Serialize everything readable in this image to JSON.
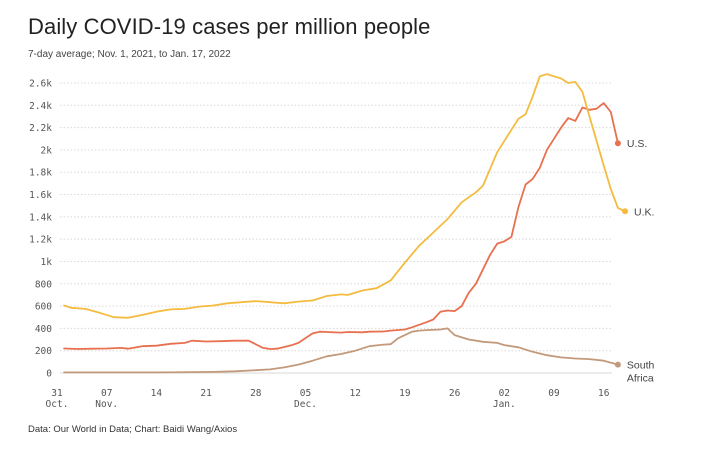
{
  "header": {
    "title": "Daily COVID-19 cases per million people",
    "subtitle": "7-day average; Nov. 1, 2021, to Jan. 17, 2022"
  },
  "footer": {
    "source": "Data: Our World in Data; Chart: Baidi Wang/Axios"
  },
  "colors": {
    "us": "#e8704f",
    "uk": "#f4bb3f",
    "south_africa": "#c29a7b",
    "grid": "#d8d8d8",
    "text": "#555555"
  },
  "chart_data": {
    "type": "line",
    "title": "Daily COVID-19 cases per million people",
    "subtitle": "7-day average; Nov. 1, 2021, to Jan. 17, 2022",
    "xlabel": "",
    "ylabel": "",
    "x_range": [
      "2021-10-31",
      "2022-01-18"
    ],
    "ylim": [
      0,
      2700
    ],
    "grid": true,
    "y_ticks": [
      0,
      200,
      400,
      600,
      800,
      1000,
      1200,
      1400,
      1600,
      1800,
      2000,
      2200,
      2400,
      2600
    ],
    "y_tick_labels": [
      "0",
      "200",
      "400",
      "600",
      "800",
      "1k",
      "1.2k",
      "1.4k",
      "1.6k",
      "1.8k",
      "2k",
      "2.2k",
      "2.4k",
      "2.6k"
    ],
    "x_ticks": [
      {
        "date": "2021-10-31",
        "day": "31",
        "month": "Oct."
      },
      {
        "date": "2021-11-07",
        "day": "07",
        "month": "Nov."
      },
      {
        "date": "2021-11-14",
        "day": "14",
        "month": ""
      },
      {
        "date": "2021-11-21",
        "day": "21",
        "month": ""
      },
      {
        "date": "2021-11-28",
        "day": "28",
        "month": ""
      },
      {
        "date": "2021-12-05",
        "day": "05",
        "month": "Dec."
      },
      {
        "date": "2021-12-12",
        "day": "12",
        "month": ""
      },
      {
        "date": "2021-12-19",
        "day": "19",
        "month": ""
      },
      {
        "date": "2021-12-26",
        "day": "26",
        "month": ""
      },
      {
        "date": "2022-01-02",
        "day": "02",
        "month": "Jan."
      },
      {
        "date": "2022-01-09",
        "day": "09",
        "month": ""
      },
      {
        "date": "2022-01-16",
        "day": "16",
        "month": ""
      }
    ],
    "series": [
      {
        "name": "U.S.",
        "label": "U.S.",
        "color": "#e8704f",
        "points": [
          [
            "2021-11-01",
            220
          ],
          [
            "2021-11-03",
            215
          ],
          [
            "2021-11-05",
            218
          ],
          [
            "2021-11-07",
            220
          ],
          [
            "2021-11-09",
            225
          ],
          [
            "2021-11-10",
            218
          ],
          [
            "2021-11-12",
            240
          ],
          [
            "2021-11-14",
            245
          ],
          [
            "2021-11-16",
            262
          ],
          [
            "2021-11-18",
            270
          ],
          [
            "2021-11-19",
            290
          ],
          [
            "2021-11-21",
            282
          ],
          [
            "2021-11-23",
            285
          ],
          [
            "2021-11-25",
            290
          ],
          [
            "2021-11-27",
            290
          ],
          [
            "2021-11-29",
            225
          ],
          [
            "2021-11-30",
            215
          ],
          [
            "2021-12-01",
            218
          ],
          [
            "2021-12-03",
            248
          ],
          [
            "2021-12-04",
            270
          ],
          [
            "2021-12-06",
            355
          ],
          [
            "2021-12-07",
            370
          ],
          [
            "2021-12-08",
            368
          ],
          [
            "2021-12-10",
            362
          ],
          [
            "2021-12-11",
            368
          ],
          [
            "2021-12-13",
            365
          ],
          [
            "2021-12-14",
            370
          ],
          [
            "2021-12-16",
            372
          ],
          [
            "2021-12-17",
            380
          ],
          [
            "2021-12-19",
            390
          ],
          [
            "2021-12-20",
            410
          ],
          [
            "2021-12-22",
            455
          ],
          [
            "2021-12-23",
            480
          ],
          [
            "2021-12-24",
            550
          ],
          [
            "2021-12-25",
            560
          ],
          [
            "2021-12-26",
            555
          ],
          [
            "2021-12-27",
            600
          ],
          [
            "2021-12-28",
            720
          ],
          [
            "2021-12-29",
            800
          ],
          [
            "2021-12-30",
            930
          ],
          [
            "2021-12-31",
            1060
          ],
          [
            "2022-01-01",
            1160
          ],
          [
            "2022-01-02",
            1180
          ],
          [
            "2022-01-03",
            1220
          ],
          [
            "2022-01-04",
            1490
          ],
          [
            "2022-01-05",
            1690
          ],
          [
            "2022-01-06",
            1740
          ],
          [
            "2022-01-07",
            1840
          ],
          [
            "2022-01-08",
            2000
          ],
          [
            "2022-01-09",
            2100
          ],
          [
            "2022-01-10",
            2200
          ],
          [
            "2022-01-11",
            2285
          ],
          [
            "2022-01-12",
            2260
          ],
          [
            "2022-01-13",
            2380
          ],
          [
            "2022-01-14",
            2360
          ],
          [
            "2022-01-15",
            2370
          ],
          [
            "2022-01-16",
            2420
          ],
          [
            "2022-01-17",
            2340
          ],
          [
            "2022-01-18",
            2060
          ]
        ]
      },
      {
        "name": "U.K.",
        "label": "U.K.",
        "color": "#f4bb3f",
        "points": [
          [
            "2021-11-01",
            605
          ],
          [
            "2021-11-02",
            585
          ],
          [
            "2021-11-04",
            575
          ],
          [
            "2021-11-06",
            540
          ],
          [
            "2021-11-08",
            500
          ],
          [
            "2021-11-10",
            495
          ],
          [
            "2021-11-12",
            520
          ],
          [
            "2021-11-14",
            550
          ],
          [
            "2021-11-16",
            570
          ],
          [
            "2021-11-18",
            575
          ],
          [
            "2021-11-20",
            595
          ],
          [
            "2021-11-22",
            605
          ],
          [
            "2021-11-24",
            625
          ],
          [
            "2021-11-26",
            635
          ],
          [
            "2021-11-28",
            645
          ],
          [
            "2021-11-30",
            635
          ],
          [
            "2021-12-02",
            625
          ],
          [
            "2021-12-04",
            640
          ],
          [
            "2021-12-06",
            650
          ],
          [
            "2021-12-08",
            690
          ],
          [
            "2021-12-10",
            705
          ],
          [
            "2021-12-11",
            700
          ],
          [
            "2021-12-13",
            740
          ],
          [
            "2021-12-15",
            760
          ],
          [
            "2021-12-17",
            830
          ],
          [
            "2021-12-19",
            990
          ],
          [
            "2021-12-21",
            1140
          ],
          [
            "2021-12-23",
            1260
          ],
          [
            "2021-12-25",
            1380
          ],
          [
            "2021-12-27",
            1530
          ],
          [
            "2021-12-29",
            1620
          ],
          [
            "2021-12-30",
            1680
          ],
          [
            "2022-01-01",
            1980
          ],
          [
            "2022-01-03",
            2180
          ],
          [
            "2022-01-04",
            2280
          ],
          [
            "2022-01-05",
            2320
          ],
          [
            "2022-01-06",
            2480
          ],
          [
            "2022-01-07",
            2660
          ],
          [
            "2022-01-08",
            2680
          ],
          [
            "2022-01-09",
            2660
          ],
          [
            "2022-01-10",
            2640
          ],
          [
            "2022-01-11",
            2600
          ],
          [
            "2022-01-12",
            2610
          ],
          [
            "2022-01-13",
            2520
          ],
          [
            "2022-01-14",
            2300
          ],
          [
            "2022-01-15",
            2080
          ],
          [
            "2022-01-16",
            1860
          ],
          [
            "2022-01-17",
            1650
          ],
          [
            "2022-01-18",
            1480
          ],
          [
            "2022-01-19",
            1450
          ]
        ]
      },
      {
        "name": "South Africa",
        "label": [
          "South",
          "Africa"
        ],
        "color": "#c29a7b",
        "points": [
          [
            "2021-11-01",
            5
          ],
          [
            "2021-11-08",
            5
          ],
          [
            "2021-11-15",
            5
          ],
          [
            "2021-11-19",
            8
          ],
          [
            "2021-11-22",
            10
          ],
          [
            "2021-11-25",
            15
          ],
          [
            "2021-11-28",
            25
          ],
          [
            "2021-11-30",
            32
          ],
          [
            "2021-12-02",
            50
          ],
          [
            "2021-12-04",
            75
          ],
          [
            "2021-12-06",
            110
          ],
          [
            "2021-12-08",
            150
          ],
          [
            "2021-12-10",
            170
          ],
          [
            "2021-12-12",
            200
          ],
          [
            "2021-12-14",
            240
          ],
          [
            "2021-12-16",
            255
          ],
          [
            "2021-12-17",
            258
          ],
          [
            "2021-12-18",
            310
          ],
          [
            "2021-12-19",
            340
          ],
          [
            "2021-12-20",
            370
          ],
          [
            "2021-12-21",
            380
          ],
          [
            "2021-12-22",
            385
          ],
          [
            "2021-12-24",
            390
          ],
          [
            "2021-12-25",
            400
          ],
          [
            "2021-12-26",
            340
          ],
          [
            "2021-12-28",
            300
          ],
          [
            "2021-12-30",
            280
          ],
          [
            "2022-01-01",
            270
          ],
          [
            "2022-01-02",
            250
          ],
          [
            "2022-01-04",
            230
          ],
          [
            "2022-01-06",
            190
          ],
          [
            "2022-01-08",
            160
          ],
          [
            "2022-01-10",
            140
          ],
          [
            "2022-01-12",
            130
          ],
          [
            "2022-01-14",
            125
          ],
          [
            "2022-01-16",
            110
          ],
          [
            "2022-01-18",
            75
          ]
        ]
      }
    ]
  }
}
